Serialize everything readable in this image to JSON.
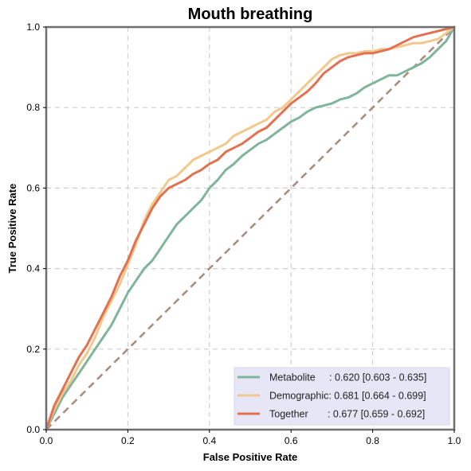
{
  "chart_data": {
    "type": "line",
    "title": "Mouth breathing",
    "xlabel": "False Positive Rate",
    "ylabel": "True Positive Rate",
    "xlim": [
      0,
      1
    ],
    "ylim": [
      0,
      1
    ],
    "x_ticks": [
      "0.0",
      "0.2",
      "0.4",
      "0.6",
      "0.8",
      "1.0"
    ],
    "y_ticks": [
      "0.0",
      "0.2",
      "0.4",
      "0.6",
      "0.8",
      "1.0"
    ],
    "grid": true,
    "legend_position": "lower-right",
    "diagonal": {
      "x": [
        0,
        1
      ],
      "y": [
        0,
        1
      ],
      "color": "#a88a7e",
      "style": "dashed"
    },
    "series": [
      {
        "name": "Metabolite",
        "legend_label": "Metabolite     : 0.620 [0.603 - 0.635]",
        "color": "#7fb59a",
        "x": [
          0,
          0.02,
          0.04,
          0.06,
          0.08,
          0.1,
          0.12,
          0.14,
          0.16,
          0.18,
          0.2,
          0.22,
          0.24,
          0.26,
          0.28,
          0.3,
          0.32,
          0.34,
          0.36,
          0.38,
          0.4,
          0.42,
          0.44,
          0.46,
          0.48,
          0.5,
          0.52,
          0.54,
          0.56,
          0.58,
          0.6,
          0.62,
          0.64,
          0.66,
          0.68,
          0.7,
          0.72,
          0.74,
          0.76,
          0.78,
          0.8,
          0.82,
          0.84,
          0.86,
          0.88,
          0.9,
          0.92,
          0.94,
          0.96,
          0.98,
          1.0
        ],
        "y": [
          0,
          0.04,
          0.08,
          0.11,
          0.14,
          0.17,
          0.2,
          0.23,
          0.26,
          0.3,
          0.34,
          0.37,
          0.4,
          0.42,
          0.45,
          0.48,
          0.51,
          0.53,
          0.55,
          0.57,
          0.6,
          0.62,
          0.645,
          0.66,
          0.68,
          0.695,
          0.71,
          0.72,
          0.735,
          0.75,
          0.765,
          0.775,
          0.79,
          0.8,
          0.805,
          0.81,
          0.82,
          0.825,
          0.835,
          0.85,
          0.86,
          0.87,
          0.88,
          0.88,
          0.89,
          0.9,
          0.91,
          0.925,
          0.945,
          0.965,
          1.0
        ]
      },
      {
        "name": "Demographic",
        "legend_label": "Demographic: 0.681 [0.664 - 0.699]",
        "color": "#f2c98c",
        "x": [
          0,
          0.02,
          0.04,
          0.06,
          0.08,
          0.1,
          0.12,
          0.14,
          0.16,
          0.18,
          0.2,
          0.22,
          0.24,
          0.26,
          0.28,
          0.3,
          0.32,
          0.34,
          0.36,
          0.38,
          0.4,
          0.42,
          0.44,
          0.46,
          0.48,
          0.5,
          0.52,
          0.54,
          0.56,
          0.58,
          0.6,
          0.62,
          0.64,
          0.66,
          0.68,
          0.7,
          0.72,
          0.74,
          0.76,
          0.78,
          0.8,
          0.82,
          0.84,
          0.86,
          0.88,
          0.9,
          0.92,
          0.94,
          0.96,
          0.98,
          1.0
        ],
        "y": [
          0,
          0.05,
          0.09,
          0.12,
          0.16,
          0.19,
          0.23,
          0.28,
          0.32,
          0.36,
          0.41,
          0.46,
          0.52,
          0.56,
          0.59,
          0.62,
          0.63,
          0.65,
          0.67,
          0.68,
          0.69,
          0.7,
          0.71,
          0.73,
          0.74,
          0.75,
          0.76,
          0.77,
          0.79,
          0.8,
          0.82,
          0.84,
          0.86,
          0.88,
          0.9,
          0.92,
          0.93,
          0.935,
          0.935,
          0.94,
          0.94,
          0.945,
          0.945,
          0.95,
          0.955,
          0.96,
          0.96,
          0.965,
          0.97,
          0.985,
          1.0
        ]
      },
      {
        "name": "Together",
        "legend_label": "Together       : 0.677 [0.659 - 0.692]",
        "color": "#e07252",
        "x": [
          0,
          0.02,
          0.04,
          0.06,
          0.08,
          0.1,
          0.12,
          0.14,
          0.16,
          0.18,
          0.2,
          0.22,
          0.24,
          0.26,
          0.28,
          0.3,
          0.32,
          0.34,
          0.36,
          0.38,
          0.4,
          0.42,
          0.44,
          0.46,
          0.48,
          0.5,
          0.52,
          0.54,
          0.56,
          0.58,
          0.6,
          0.62,
          0.64,
          0.66,
          0.68,
          0.7,
          0.72,
          0.74,
          0.76,
          0.78,
          0.8,
          0.82,
          0.84,
          0.86,
          0.88,
          0.9,
          0.92,
          0.94,
          0.96,
          0.98,
          1.0
        ],
        "y": [
          0,
          0.06,
          0.1,
          0.14,
          0.18,
          0.21,
          0.25,
          0.29,
          0.33,
          0.38,
          0.42,
          0.47,
          0.51,
          0.55,
          0.58,
          0.6,
          0.61,
          0.62,
          0.635,
          0.645,
          0.66,
          0.67,
          0.69,
          0.7,
          0.71,
          0.725,
          0.74,
          0.75,
          0.77,
          0.79,
          0.81,
          0.825,
          0.84,
          0.86,
          0.885,
          0.9,
          0.915,
          0.925,
          0.93,
          0.935,
          0.935,
          0.94,
          0.945,
          0.955,
          0.965,
          0.975,
          0.98,
          0.985,
          0.99,
          0.995,
          1.0
        ]
      }
    ],
    "legend_bg": "#e6e6f7"
  }
}
